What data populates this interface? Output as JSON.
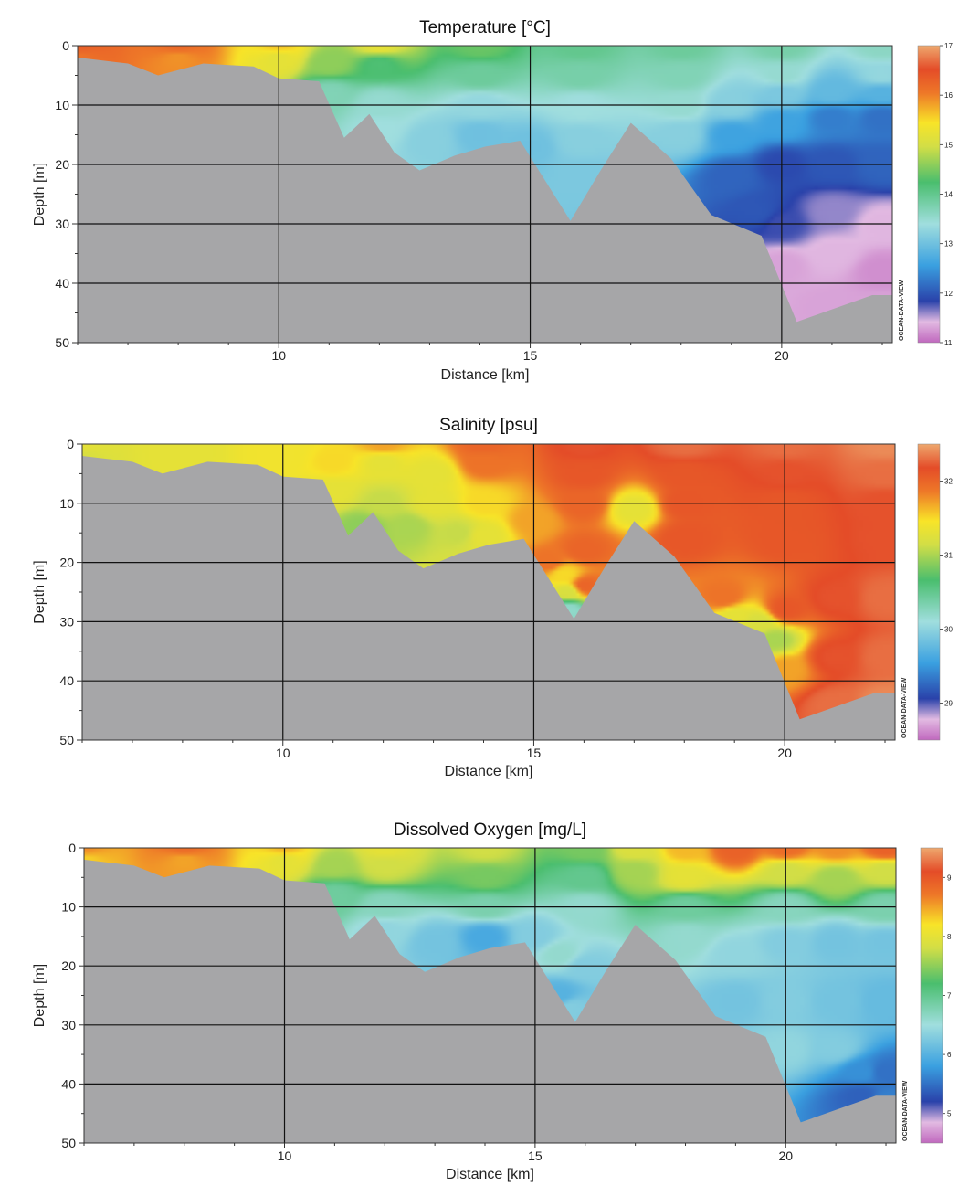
{
  "chart_data": [
    {
      "type": "heatmap",
      "title": "Temperature [°C]",
      "xlabel": "Distance [km]",
      "ylabel": "Depth [m]",
      "xlim": [
        6,
        22.2
      ],
      "ylim": [
        0,
        50
      ],
      "y_inverted": true,
      "grid": true,
      "x_ticks": [
        10,
        15,
        20
      ],
      "y_ticks": [
        0,
        10,
        20,
        30,
        40,
        50
      ],
      "watermark": "OCEAN-DATA-VIEW",
      "colorbar": {
        "ticks": [
          11,
          12,
          13,
          14,
          15,
          16,
          17
        ],
        "min": 11,
        "max": 17
      },
      "bottom_depth": [
        [
          6,
          2
        ],
        [
          6.5,
          2.5
        ],
        [
          7,
          3
        ],
        [
          7.6,
          5
        ],
        [
          8.5,
          3
        ],
        [
          9.5,
          3.5
        ],
        [
          10,
          5.5
        ],
        [
          10.8,
          6
        ],
        [
          11.3,
          15.5
        ],
        [
          11.8,
          11.5
        ],
        [
          12.3,
          18
        ],
        [
          12.8,
          21
        ],
        [
          13.5,
          18.5
        ],
        [
          14.1,
          17
        ],
        [
          14.8,
          16
        ],
        [
          15.8,
          29.5
        ],
        [
          16.4,
          21
        ],
        [
          17,
          13
        ],
        [
          17.8,
          19
        ],
        [
          18.6,
          28.5
        ],
        [
          19.6,
          32
        ],
        [
          20.3,
          46.5
        ],
        [
          21.8,
          42
        ],
        [
          22.2,
          42
        ]
      ],
      "field": [
        [
          6,
          0,
          16.3
        ],
        [
          8,
          0,
          16.2
        ],
        [
          10,
          0,
          15.6
        ],
        [
          12,
          0,
          15.2
        ],
        [
          14,
          0,
          14.4
        ],
        [
          16,
          0,
          14.0
        ],
        [
          18,
          0,
          13.9
        ],
        [
          20,
          0,
          13.8
        ],
        [
          22,
          0,
          13.6
        ],
        [
          6,
          2,
          16.1
        ],
        [
          8,
          2,
          15.9
        ],
        [
          10,
          2,
          15.2
        ],
        [
          11,
          3,
          14.6
        ],
        [
          12,
          3,
          14.2
        ],
        [
          14,
          5,
          13.9
        ],
        [
          16,
          5,
          13.8
        ],
        [
          18,
          5,
          13.7
        ],
        [
          20,
          5,
          13.5
        ],
        [
          22,
          5,
          13.3
        ],
        [
          11,
          8,
          13.7
        ],
        [
          12,
          10,
          13.5
        ],
        [
          14,
          10,
          13.3
        ],
        [
          16,
          10,
          13.4
        ],
        [
          18,
          10,
          13.5
        ],
        [
          19,
          10,
          13.2
        ],
        [
          20,
          8,
          13.1
        ],
        [
          21,
          8,
          12.9
        ],
        [
          22,
          8,
          12.8
        ],
        [
          12,
          14,
          13.4
        ],
        [
          13,
          16,
          13.2
        ],
        [
          14,
          15,
          13.0
        ],
        [
          15,
          17,
          13.0
        ],
        [
          16,
          16,
          13.2
        ],
        [
          16,
          22,
          13.1
        ],
        [
          18,
          15,
          13.2
        ],
        [
          19,
          15,
          12.6
        ],
        [
          20,
          13,
          12.6
        ],
        [
          21,
          12,
          12.3
        ],
        [
          22,
          12,
          12.2
        ],
        [
          19,
          22,
          12.1
        ],
        [
          20,
          20,
          11.9
        ],
        [
          21,
          20,
          12.0
        ],
        [
          22,
          20,
          12.1
        ],
        [
          19.5,
          28,
          12.0
        ],
        [
          20,
          30,
          11.8
        ],
        [
          21,
          28,
          11.6
        ],
        [
          22,
          30,
          11.4
        ],
        [
          20,
          37,
          11.3
        ],
        [
          21,
          35,
          11.4
        ],
        [
          22,
          38,
          11.2
        ],
        [
          21,
          44,
          11.3
        ],
        [
          22,
          44,
          11.3
        ]
      ]
    },
    {
      "type": "heatmap",
      "title": "Salinity [psu]",
      "xlabel": "Distance [km]",
      "ylabel": "Depth [m]",
      "xlim": [
        6,
        22.2
      ],
      "ylim": [
        0,
        50
      ],
      "y_inverted": true,
      "grid": true,
      "x_ticks": [
        10,
        15,
        20
      ],
      "y_ticks": [
        0,
        10,
        20,
        30,
        40,
        50
      ],
      "watermark": "OCEAN-DATA-VIEW",
      "colorbar": {
        "ticks": [
          29,
          30,
          31,
          32
        ],
        "min": 28.5,
        "max": 32.5
      },
      "bottom_depth": [
        [
          6,
          2
        ],
        [
          6.5,
          2.5
        ],
        [
          7,
          3
        ],
        [
          7.6,
          5
        ],
        [
          8.5,
          3
        ],
        [
          9.5,
          3.5
        ],
        [
          10,
          5.5
        ],
        [
          10.8,
          6
        ],
        [
          11.3,
          15.5
        ],
        [
          11.8,
          11.5
        ],
        [
          12.3,
          18
        ],
        [
          12.8,
          21
        ],
        [
          13.5,
          18.5
        ],
        [
          14.1,
          17
        ],
        [
          14.8,
          16
        ],
        [
          15.8,
          29.5
        ],
        [
          16.4,
          21
        ],
        [
          17,
          13
        ],
        [
          17.8,
          19
        ],
        [
          18.6,
          28.5
        ],
        [
          19.6,
          32
        ],
        [
          20.3,
          46.5
        ],
        [
          21.8,
          42
        ],
        [
          22.2,
          42
        ]
      ],
      "field": [
        [
          6,
          0,
          31.3
        ],
        [
          8,
          0,
          31.3
        ],
        [
          10,
          0,
          31.4
        ],
        [
          12,
          0,
          31.7
        ],
        [
          14,
          0,
          32.0
        ],
        [
          16,
          0,
          32.2
        ],
        [
          18,
          0,
          32.3
        ],
        [
          20,
          0,
          32.3
        ],
        [
          22,
          0,
          32.4
        ],
        [
          6,
          2,
          31.2
        ],
        [
          8,
          2,
          31.3
        ],
        [
          10,
          2,
          31.4
        ],
        [
          11,
          3,
          31.5
        ],
        [
          12,
          3,
          31.3
        ],
        [
          13,
          5,
          31.3
        ],
        [
          14,
          3,
          31.9
        ],
        [
          16,
          5,
          32.1
        ],
        [
          18,
          5,
          32.1
        ],
        [
          20,
          5,
          32.2
        ],
        [
          22,
          5,
          32.3
        ],
        [
          11,
          8,
          31.3
        ],
        [
          12,
          10,
          31.1
        ],
        [
          13,
          10,
          31.3
        ],
        [
          14,
          10,
          31.5
        ],
        [
          16,
          10,
          32.0
        ],
        [
          17,
          11,
          31.3
        ],
        [
          18,
          10,
          32.1
        ],
        [
          20,
          10,
          32.1
        ],
        [
          22,
          10,
          32.2
        ],
        [
          11.6,
          14,
          30.9
        ],
        [
          12.5,
          14,
          31.0
        ],
        [
          13.5,
          15,
          31.1
        ],
        [
          14,
          15.5,
          31.3
        ],
        [
          15,
          13,
          31.7
        ],
        [
          15.3,
          20,
          31.9
        ],
        [
          16,
          18,
          32.0
        ],
        [
          18,
          16,
          32.1
        ],
        [
          20,
          16,
          32.1
        ],
        [
          22,
          16,
          32.2
        ],
        [
          15.6,
          22,
          31.5
        ],
        [
          15.7,
          25,
          31.2
        ],
        [
          15.7,
          28,
          30.2
        ],
        [
          16,
          24,
          32.0
        ],
        [
          18.8,
          26,
          31.9
        ],
        [
          19,
          29,
          31.3
        ],
        [
          19.5,
          30,
          31.2
        ],
        [
          19.8,
          33,
          31.0
        ],
        [
          20,
          28,
          32.1
        ],
        [
          21,
          26,
          32.2
        ],
        [
          22,
          26,
          32.3
        ],
        [
          20,
          38,
          31.7
        ],
        [
          21,
          36,
          32.2
        ],
        [
          22,
          36,
          32.3
        ],
        [
          21,
          44,
          32.3
        ],
        [
          22,
          44,
          32.4
        ]
      ]
    },
    {
      "type": "heatmap",
      "title": "Dissolved Oxygen [mg/L]",
      "xlabel": "Distance [km]",
      "ylabel": "Depth [m]",
      "xlim": [
        6,
        22.2
      ],
      "ylim": [
        0,
        50
      ],
      "y_inverted": true,
      "grid": true,
      "x_ticks": [
        10,
        15,
        20
      ],
      "y_ticks": [
        0,
        10,
        20,
        30,
        40,
        50
      ],
      "watermark": "OCEAN-DATA-VIEW",
      "colorbar": {
        "ticks": [
          5,
          6,
          7,
          8,
          9
        ],
        "min": 4.5,
        "max": 9.5
      },
      "bottom_depth": [
        [
          6,
          2
        ],
        [
          6.5,
          2.5
        ],
        [
          7,
          3
        ],
        [
          7.6,
          5
        ],
        [
          8.5,
          3
        ],
        [
          9.5,
          3.5
        ],
        [
          10,
          5.5
        ],
        [
          10.8,
          6
        ],
        [
          11.3,
          15.5
        ],
        [
          11.8,
          11.5
        ],
        [
          12.3,
          18
        ],
        [
          12.8,
          21
        ],
        [
          13.5,
          18.5
        ],
        [
          14.1,
          17
        ],
        [
          14.8,
          16
        ],
        [
          15.8,
          29.5
        ],
        [
          16.4,
          21
        ],
        [
          17,
          13
        ],
        [
          17.8,
          19
        ],
        [
          18.6,
          28.5
        ],
        [
          19.6,
          32
        ],
        [
          20.3,
          46.5
        ],
        [
          21.8,
          42
        ],
        [
          22.2,
          42
        ]
      ],
      "field": [
        [
          6,
          0,
          8.6
        ],
        [
          8,
          0,
          8.8
        ],
        [
          10,
          0,
          8.4
        ],
        [
          12,
          0,
          8.0
        ],
        [
          14,
          0,
          7.8
        ],
        [
          16,
          0,
          7.4
        ],
        [
          17,
          0,
          7.9
        ],
        [
          18,
          0,
          8.4
        ],
        [
          19,
          0,
          8.9
        ],
        [
          20,
          0,
          8.8
        ],
        [
          21,
          0,
          8.6
        ],
        [
          22,
          0,
          8.9
        ],
        [
          6,
          2,
          8.3
        ],
        [
          8,
          2,
          8.5
        ],
        [
          10,
          2,
          8.0
        ],
        [
          11,
          3,
          7.6
        ],
        [
          12,
          3,
          7.8
        ],
        [
          14,
          5,
          7.4
        ],
        [
          16,
          5,
          7.0
        ],
        [
          17,
          4,
          7.6
        ],
        [
          18,
          5,
          8.0
        ],
        [
          20,
          4,
          7.8
        ],
        [
          21,
          5,
          7.6
        ],
        [
          22,
          4,
          7.8
        ],
        [
          11,
          8,
          6.9
        ],
        [
          12,
          10,
          6.7
        ],
        [
          14,
          10,
          6.8
        ],
        [
          16,
          10,
          6.6
        ],
        [
          18,
          10,
          6.9
        ],
        [
          20,
          10,
          6.7
        ],
        [
          22,
          10,
          6.8
        ],
        [
          12,
          14,
          6.4
        ],
        [
          13,
          16,
          6.2
        ],
        [
          14,
          15,
          5.9
        ],
        [
          15,
          15,
          6.3
        ],
        [
          15.5,
          18,
          6.6
        ],
        [
          16,
          20,
          6.3
        ],
        [
          18,
          15,
          6.6
        ],
        [
          19,
          18,
          6.4
        ],
        [
          20,
          16,
          6.3
        ],
        [
          21,
          16,
          6.2
        ],
        [
          22,
          16,
          6.2
        ],
        [
          15.5,
          25,
          6.0
        ],
        [
          15.7,
          27,
          6.3
        ],
        [
          19,
          26,
          6.2
        ],
        [
          20,
          26,
          6.3
        ],
        [
          21,
          26,
          6.2
        ],
        [
          22,
          26,
          6.1
        ],
        [
          20,
          34,
          6.4
        ],
        [
          21,
          34,
          6.3
        ],
        [
          21.5,
          38,
          5.7
        ],
        [
          22,
          38,
          5.5
        ],
        [
          21.5,
          42,
          5.4
        ],
        [
          22,
          43,
          5.6
        ]
      ]
    }
  ]
}
